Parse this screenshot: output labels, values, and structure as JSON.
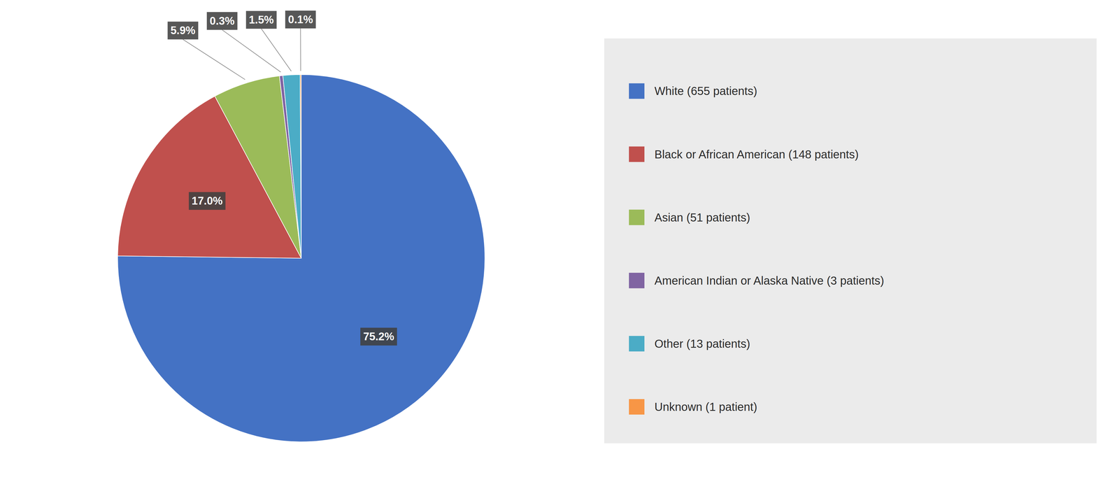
{
  "chart_data": {
    "type": "pie",
    "categories": [
      "White (655 patients)",
      "Black or African American (148 patients)",
      "Asian (51 patients)",
      "American Indian or Alaska Native (3 patients)",
      "Other (13 patients)",
      "Unknown (1 patient)"
    ],
    "values": [
      75.2,
      17.0,
      5.9,
      0.3,
      1.5,
      0.1
    ],
    "value_labels": [
      "75.2%",
      "17.0%",
      "5.9%",
      "0.3%",
      "1.5%",
      "0.1%"
    ],
    "colors": [
      "#4472C4",
      "#C0504D",
      "#9BBB59",
      "#8064A2",
      "#4BACC6",
      "#F79646"
    ],
    "data_labels": true,
    "legend": "right"
  }
}
